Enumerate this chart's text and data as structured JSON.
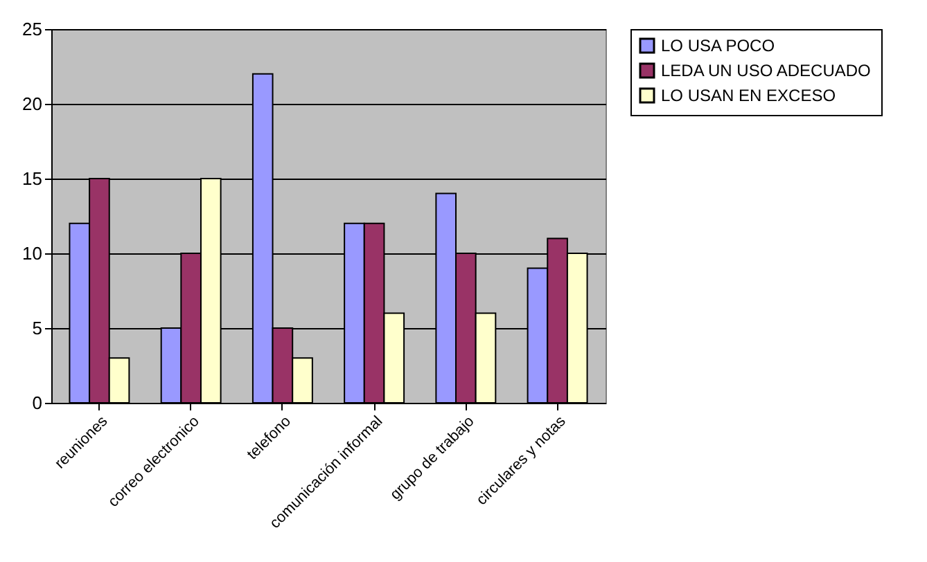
{
  "chart_data": {
    "type": "bar",
    "categories": [
      "reuniones",
      "correo electronico",
      "telefono",
      "comunicación informal",
      "grupo de trabajo",
      "circulares y notas"
    ],
    "series": [
      {
        "name": "LO USA POCO",
        "color": "#9999ff",
        "values": [
          12,
          5,
          22,
          12,
          14,
          9
        ]
      },
      {
        "name": "LEDA UN USO ADECUADO",
        "color": "#993366",
        "values": [
          15,
          10,
          5,
          12,
          10,
          11
        ]
      },
      {
        "name": "LO USAN EN EXCESO",
        "color": "#ffffcc",
        "values": [
          3,
          15,
          3,
          6,
          6,
          10
        ]
      }
    ],
    "ylim": [
      0,
      25
    ],
    "yticks": [
      0,
      5,
      10,
      15,
      20,
      25
    ],
    "grid": "y",
    "legend": "right"
  }
}
